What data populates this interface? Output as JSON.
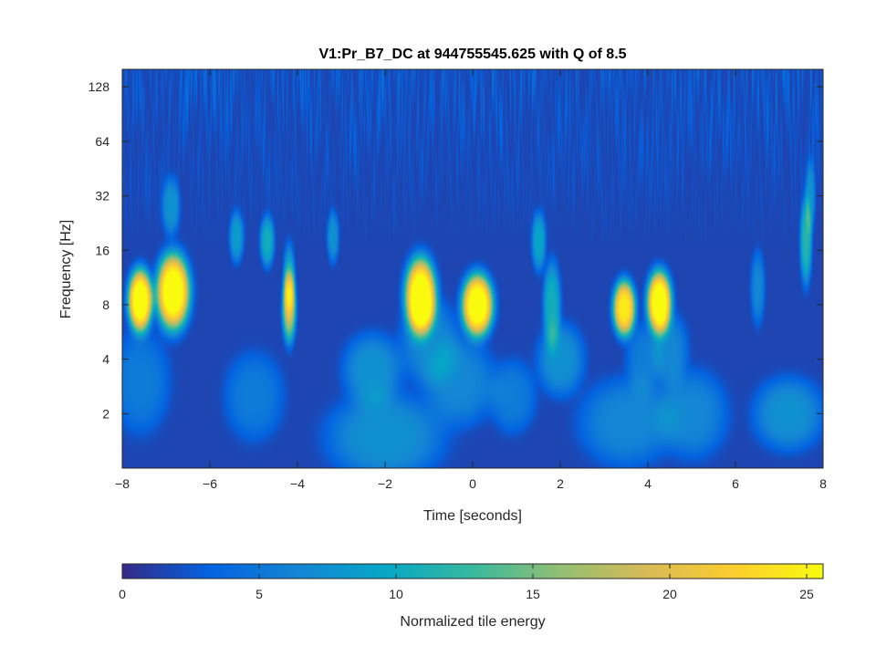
{
  "chart_data": {
    "type": "heatmap",
    "title": "V1:Pr_B7_DC at 944755545.625 with Q of 8.5",
    "xlabel": "Time [seconds]",
    "ylabel": "Frequency [Hz]",
    "xlim": [
      -8,
      8
    ],
    "ylim": [
      1,
      160
    ],
    "y_scale": "log2",
    "x_ticks": [
      -8,
      -6,
      -4,
      -2,
      0,
      2,
      4,
      6,
      8
    ],
    "x_tick_labels": [
      "−8",
      "−6",
      "−4",
      "−2",
      "0",
      "2",
      "4",
      "6",
      "8"
    ],
    "y_ticks": [
      2,
      4,
      8,
      16,
      32,
      64,
      128
    ],
    "y_tick_labels": [
      "2",
      "4",
      "8",
      "16",
      "32",
      "64",
      "128"
    ],
    "colorbar": {
      "label": "Normalized tile energy",
      "range": [
        0,
        25.6
      ],
      "ticks": [
        0,
        5,
        10,
        15,
        20,
        25
      ],
      "tick_labels": [
        "0",
        "5",
        "10",
        "15",
        "20",
        "25"
      ],
      "colormap": "parula",
      "colors": [
        "#352a87",
        "#0363e1",
        "#1485d4",
        "#06a7c6",
        "#38b99e",
        "#92bf73",
        "#d9ba56",
        "#fcce2e",
        "#f9fb0e"
      ]
    },
    "background_energy": 1.5,
    "blobs": [
      {
        "t": -7.6,
        "f": 8.5,
        "energy": 25.6,
        "dt": 0.22,
        "dlogf": 0.45
      },
      {
        "t": -6.85,
        "f": 9.5,
        "energy": 25.6,
        "dt": 0.3,
        "dlogf": 0.55
      },
      {
        "t": -1.2,
        "f": 9.0,
        "energy": 25.6,
        "dt": 0.28,
        "dlogf": 0.55
      },
      {
        "t": 0.1,
        "f": 8.0,
        "energy": 25.6,
        "dt": 0.28,
        "dlogf": 0.45
      },
      {
        "t": 3.45,
        "f": 7.7,
        "energy": 23.0,
        "dt": 0.2,
        "dlogf": 0.4
      },
      {
        "t": 4.25,
        "f": 8.3,
        "energy": 25.6,
        "dt": 0.22,
        "dlogf": 0.45
      },
      {
        "t": -4.2,
        "f": 7.8,
        "energy": 16.0,
        "dt": 0.12,
        "dlogf": 0.5
      },
      {
        "t": -4.2,
        "f": 11.0,
        "energy": 8.0,
        "dt": 0.1,
        "dlogf": 0.5
      },
      {
        "t": 1.8,
        "f": 8.0,
        "energy": 9.0,
        "dt": 0.15,
        "dlogf": 0.6
      },
      {
        "t": 1.5,
        "f": 18.0,
        "energy": 8.0,
        "dt": 0.12,
        "dlogf": 0.4
      },
      {
        "t": -4.7,
        "f": 18.0,
        "energy": 9.0,
        "dt": 0.12,
        "dlogf": 0.35
      },
      {
        "t": -5.4,
        "f": 19.0,
        "energy": 7.0,
        "dt": 0.12,
        "dlogf": 0.35
      },
      {
        "t": -3.2,
        "f": 19.0,
        "energy": 6.0,
        "dt": 0.1,
        "dlogf": 0.35
      },
      {
        "t": -6.9,
        "f": 28.0,
        "energy": 6.0,
        "dt": 0.15,
        "dlogf": 0.4
      },
      {
        "t": 7.6,
        "f": 18.0,
        "energy": 10.0,
        "dt": 0.1,
        "dlogf": 0.6
      },
      {
        "t": 7.7,
        "f": 32.0,
        "energy": 6.0,
        "dt": 0.08,
        "dlogf": 0.5
      },
      {
        "t": 6.5,
        "f": 10.0,
        "energy": 5.0,
        "dt": 0.12,
        "dlogf": 0.5
      },
      {
        "t": -2.3,
        "f": 3.5,
        "energy": 6.0,
        "dt": 0.5,
        "dlogf": 0.5
      },
      {
        "t": -2.0,
        "f": 1.5,
        "energy": 6.0,
        "dt": 1.0,
        "dlogf": 0.6
      },
      {
        "t": -0.3,
        "f": 3.0,
        "energy": 5.0,
        "dt": 0.6,
        "dlogf": 0.6
      },
      {
        "t": -1.0,
        "f": 5.0,
        "energy": 5.0,
        "dt": 0.5,
        "dlogf": 0.6
      },
      {
        "t": 2.0,
        "f": 4.0,
        "energy": 6.0,
        "dt": 0.4,
        "dlogf": 0.5
      },
      {
        "t": 3.5,
        "f": 1.8,
        "energy": 5.0,
        "dt": 0.8,
        "dlogf": 0.6
      },
      {
        "t": 5.0,
        "f": 2.0,
        "energy": 5.0,
        "dt": 0.6,
        "dlogf": 0.6
      },
      {
        "t": 7.2,
        "f": 2.0,
        "energy": 6.0,
        "dt": 0.6,
        "dlogf": 0.5
      },
      {
        "t": -7.6,
        "f": 3.0,
        "energy": 4.0,
        "dt": 0.5,
        "dlogf": 0.7
      },
      {
        "t": -5.0,
        "f": 2.5,
        "energy": 4.0,
        "dt": 0.5,
        "dlogf": 0.6
      },
      {
        "t": 4.5,
        "f": 4.5,
        "energy": 5.0,
        "dt": 0.3,
        "dlogf": 0.5
      },
      {
        "t": 3.9,
        "f": 4.0,
        "energy": 4.0,
        "dt": 0.3,
        "dlogf": 0.5
      },
      {
        "t": 0.9,
        "f": 2.5,
        "energy": 4.0,
        "dt": 0.4,
        "dlogf": 0.5
      }
    ]
  }
}
